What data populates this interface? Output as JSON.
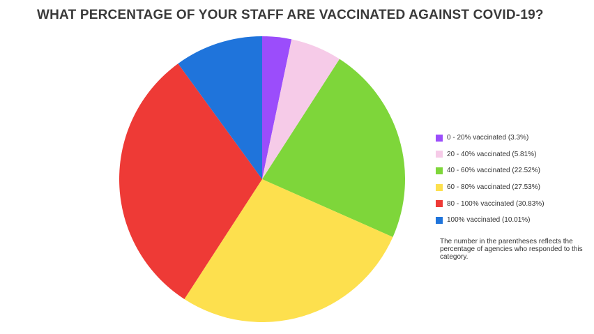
{
  "chart_data": {
    "type": "pie",
    "title": "WHAT PERCENTAGE OF YOUR STAFF ARE VACCINATED AGAINST COVID-19?",
    "categories": [
      "0 - 20% vaccinated (3.3%)",
      "20 - 40% vaccinated (5.81%)",
      "40 - 60% vaccinated (22.52%)",
      "60 - 80% vaccinated (27.53%)",
      "80 - 100% vaccinated (30.83%)",
      "100% vaccinated (10.01%)"
    ],
    "values": [
      3.3,
      5.81,
      22.52,
      27.53,
      30.83,
      10.01
    ],
    "colors": [
      "#9b4dfb",
      "#f6cbe8",
      "#7ed63a",
      "#fde04e",
      "#ee3a36",
      "#1f74db"
    ],
    "legend_position": "right",
    "note": "The number in the parentheses reflects the percentage of agencies who responded to this category."
  }
}
